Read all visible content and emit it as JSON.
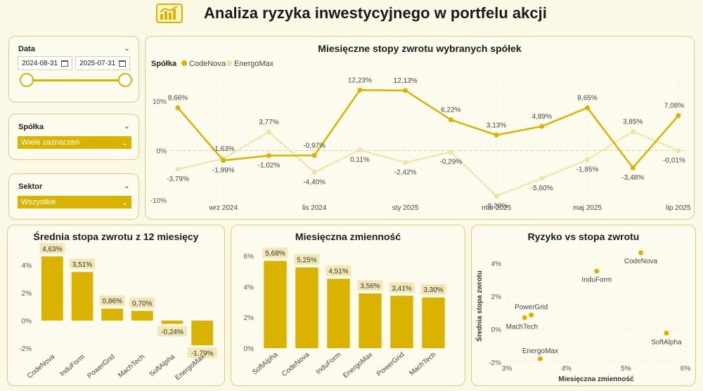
{
  "page": {
    "title": "Analiza ryzyka inwestycyjnego w portfelu akcji"
  },
  "filters": {
    "date": {
      "label": "Data",
      "start": "2024-08-31",
      "end": "2025-07-31"
    },
    "company": {
      "label": "Spółka",
      "value": "Wiele zaznaczeń"
    },
    "sector": {
      "label": "Sektor",
      "value": "Wszystkie"
    }
  },
  "colors": {
    "accent": "#d9b300",
    "light": "#f2e2a0",
    "bg": "#fcf8e6"
  },
  "chart_data": [
    {
      "type": "line",
      "title": "Miesięczne stopy zwrotu wybranych spółek",
      "legend_title": "Spółka",
      "legend_position": "top-left",
      "x": [
        "2024-08",
        "2024-09",
        "2024-10",
        "2024-11",
        "2024-12",
        "2025-01",
        "2025-02",
        "2025-03",
        "2025-04",
        "2025-05",
        "2025-06",
        "2025-07"
      ],
      "x_tick_labels": [
        "wrz 2024",
        "lis 2024",
        "sty 2025",
        "mar 2025",
        "maj 2025",
        "lip 2025"
      ],
      "x_tick_positions": [
        "2024-09",
        "2024-11",
        "2025-01",
        "2025-03",
        "2025-05",
        "2025-07"
      ],
      "y_ticks": [
        10,
        0,
        -10
      ],
      "y_tick_labels": [
        "10%",
        "0%",
        "-10%"
      ],
      "ylim": [
        -10,
        10
      ],
      "series": [
        {
          "name": "CodeNova",
          "values": [
            8.66,
            -1.99,
            -1.02,
            -0.97,
            12.23,
            12.13,
            6.22,
            3.13,
            4.89,
            8.65,
            -3.48,
            7.08
          ],
          "labels": [
            "8,66%",
            "-1,99%",
            "-1,02%",
            "-0,97%",
            "12,23%",
            "12,13%",
            "6,22%",
            "3,13%",
            "4,89%",
            "8,65%",
            "-3,48%",
            "7,08%"
          ]
        },
        {
          "name": "EnergoMax",
          "values": [
            -3.79,
            -1.63,
            3.77,
            -4.4,
            0.11,
            -2.42,
            -0.29,
            -9.2,
            -5.6,
            -1.85,
            3.85,
            -0.01
          ],
          "labels": [
            "-3,79%",
            "-1,63%",
            "3,77%",
            "-4,40%",
            "0,11%",
            "-2,42%",
            "-0,29%",
            "-9,20%",
            "-5,60%",
            "-1,85%",
            "3,85%",
            "-0,01%"
          ]
        }
      ]
    },
    {
      "type": "bar",
      "title": "Średnia stopa zwrotu z 12 miesięcy",
      "categories": [
        "CodeNova",
        "InduForm",
        "PowerGrid",
        "MachTech",
        "SoftAlpha",
        "EnergoMax"
      ],
      "values": [
        4.63,
        3.51,
        0.86,
        0.7,
        -0.24,
        -1.79
      ],
      "labels": [
        "4,63%",
        "3,51%",
        "0,86%",
        "0,70%",
        "-0,24%",
        "-1,79%"
      ],
      "y_ticks": [
        4,
        2,
        0,
        -2
      ],
      "y_tick_labels": [
        "4%",
        "2%",
        "0%",
        "-2%"
      ],
      "ylim": [
        -2.5,
        5
      ]
    },
    {
      "type": "bar",
      "title": "Miesięczna zmienność",
      "categories": [
        "SoftAlpha",
        "CodeNova",
        "InduForm",
        "EnergoMax",
        "PowerGrid",
        "MachTech"
      ],
      "values": [
        5.68,
        5.25,
        4.51,
        3.56,
        3.41,
        3.3
      ],
      "labels": [
        "5,68%",
        "5,25%",
        "4,51%",
        "3,56%",
        "3,41%",
        "3,30%"
      ],
      "y_ticks": [
        6,
        4,
        2,
        0
      ],
      "y_tick_labels": [
        "6%",
        "4%",
        "2%",
        "0%"
      ],
      "ylim": [
        0,
        6.3
      ]
    },
    {
      "type": "scatter",
      "title": "Ryzyko vs stopa zwrotu",
      "xlabel": "Miesięczna zmienność",
      "ylabel": "Średnia stopa zwrotu",
      "x_ticks": [
        3,
        4,
        5,
        6
      ],
      "x_tick_labels": [
        "3%",
        "4%",
        "5%",
        "6%"
      ],
      "y_ticks": [
        4,
        2,
        0,
        -2
      ],
      "y_tick_labels": [
        "4%",
        "2%",
        "0%",
        "-2%"
      ],
      "xlim": [
        3,
        6
      ],
      "ylim": [
        -2,
        4.8
      ],
      "points": [
        {
          "name": "CodeNova",
          "x": 5.25,
          "y": 4.63
        },
        {
          "name": "InduForm",
          "x": 4.51,
          "y": 3.51
        },
        {
          "name": "PowerGrid",
          "x": 3.41,
          "y": 0.86
        },
        {
          "name": "MachTech",
          "x": 3.3,
          "y": 0.7
        },
        {
          "name": "SoftAlpha",
          "x": 5.68,
          "y": -0.24
        },
        {
          "name": "EnergoMax",
          "x": 3.56,
          "y": -1.79
        }
      ]
    }
  ]
}
